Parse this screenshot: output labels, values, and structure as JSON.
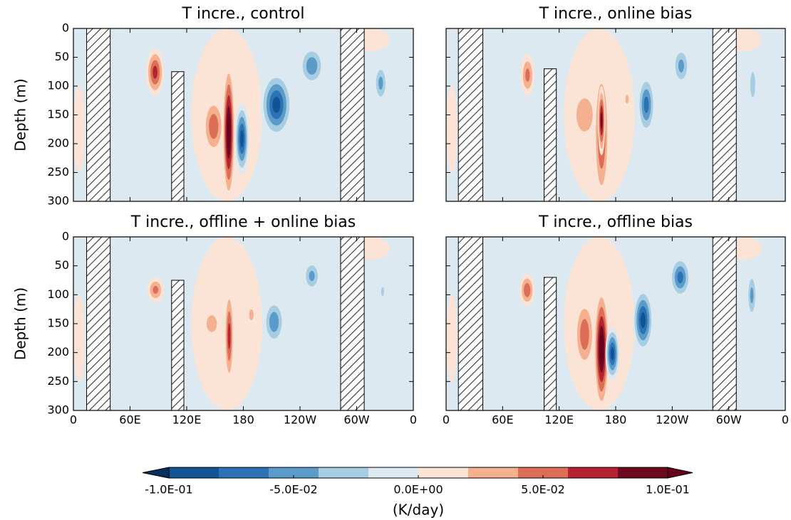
{
  "chart_data": [
    {
      "type": "contour",
      "title": "T incre.,  control",
      "ylabel": "Depth (m)",
      "xlim": [
        0,
        360
      ],
      "xticks": [
        0,
        60,
        120,
        180,
        240,
        300,
        360
      ],
      "ylim": [
        300,
        0
      ],
      "yticks": [
        0,
        50,
        100,
        150,
        200,
        250,
        300
      ],
      "background": -0.01,
      "masks": [
        {
          "lon": [
            14,
            39
          ],
          "depth": [
            0,
            300
          ]
        },
        {
          "lon": [
            104,
            117
          ],
          "depth": [
            75,
            300
          ]
        },
        {
          "lon": [
            283,
            308
          ],
          "depth": [
            0,
            300
          ]
        }
      ],
      "features": [
        {
          "lon": [
            125,
            200
          ],
          "depth": [
            0,
            300
          ],
          "value": 0.01
        },
        {
          "lon": [
            0,
            12
          ],
          "depth": [
            100,
            250
          ],
          "value": 0.01
        },
        {
          "lon": [
            295,
            335
          ],
          "depth": [
            0,
            40
          ],
          "value": 0.01
        },
        {
          "lon": [
            77,
            96
          ],
          "depth": [
            35,
            117
          ],
          "value": 0.07
        },
        {
          "lon": [
            137,
            160
          ],
          "depth": [
            120,
            220
          ],
          "value": 0.06
        },
        {
          "lon": [
            158,
            171
          ],
          "depth": [
            60,
            300
          ],
          "value": 0.11
        },
        {
          "lon": [
            171,
            186
          ],
          "depth": [
            130,
            253
          ],
          "value": -0.09
        },
        {
          "lon": [
            198,
            232
          ],
          "depth": [
            75,
            190
          ],
          "value": -0.09
        },
        {
          "lon": [
            239,
            266
          ],
          "depth": [
            30,
            100
          ],
          "value": -0.06
        },
        {
          "lon": [
            318,
            333
          ],
          "depth": [
            60,
            130
          ],
          "value": -0.05
        }
      ]
    },
    {
      "type": "contour",
      "title": "T incre.,  online bias",
      "xlim": [
        0,
        360
      ],
      "xticks": [
        0,
        60,
        120,
        180,
        240,
        300,
        360
      ],
      "ylim": [
        300,
        0
      ],
      "yticks": [
        0,
        50,
        100,
        150,
        200,
        250,
        300
      ],
      "background": -0.01,
      "masks": [
        {
          "lon": [
            13,
            39
          ],
          "depth": [
            0,
            300
          ]
        },
        {
          "lon": [
            104,
            117
          ],
          "depth": [
            70,
            300
          ]
        },
        {
          "lon": [
            283,
            308
          ],
          "depth": [
            0,
            300
          ]
        }
      ],
      "features": [
        {
          "lon": [
            125,
            200
          ],
          "depth": [
            0,
            300
          ],
          "value": 0.01
        },
        {
          "lon": [
            0,
            12
          ],
          "depth": [
            100,
            250
          ],
          "value": 0.01
        },
        {
          "lon": [
            295,
            335
          ],
          "depth": [
            0,
            40
          ],
          "value": 0.01
        },
        {
          "lon": [
            79,
            94
          ],
          "depth": [
            45,
            117
          ],
          "value": 0.05
        },
        {
          "lon": [
            132,
            162
          ],
          "depth": [
            100,
            200
          ],
          "value": 0.04
        },
        {
          "lon": [
            157,
            173
          ],
          "depth": [
            68,
            300
          ],
          "value": 0.07
        },
        {
          "lon": [
            161,
            169
          ],
          "depth": [
            100,
            220
          ],
          "value": 0.09
        },
        {
          "lon": [
            188,
            196
          ],
          "depth": [
            105,
            140
          ],
          "value": 0.03
        },
        {
          "lon": [
            203,
            222
          ],
          "depth": [
            80,
            185
          ],
          "value": -0.07
        },
        {
          "lon": [
            240,
            259
          ],
          "depth": [
            30,
            100
          ],
          "value": -0.05
        },
        {
          "lon": [
            321,
            330
          ],
          "depth": [
            60,
            135
          ],
          "value": -0.04
        }
      ]
    },
    {
      "type": "contour",
      "title": "T incre.,  offline + online bias",
      "ylabel": "Depth (m)",
      "xlim": [
        0,
        360
      ],
      "xticks": [
        0,
        {
          "value": 60,
          "label": "60E"
        },
        {
          "value": 120,
          "label": "120E"
        },
        180,
        {
          "value": 240,
          "label": "120W"
        },
        {
          "value": 300,
          "label": "60W"
        },
        {
          "value": 360,
          "label": "0"
        }
      ],
      "ylim": [
        300,
        0
      ],
      "yticks": [
        0,
        50,
        100,
        150,
        200,
        250,
        300
      ],
      "background": -0.01,
      "masks": [
        {
          "lon": [
            14,
            39
          ],
          "depth": [
            0,
            300
          ]
        },
        {
          "lon": [
            104,
            117
          ],
          "depth": [
            75,
            300
          ]
        },
        {
          "lon": [
            283,
            308
          ],
          "depth": [
            0,
            300
          ]
        }
      ],
      "features": [
        {
          "lon": [
            125,
            200
          ],
          "depth": [
            0,
            300
          ],
          "value": 0.01
        },
        {
          "lon": [
            0,
            12
          ],
          "depth": [
            100,
            250
          ],
          "value": 0.01
        },
        {
          "lon": [
            295,
            335
          ],
          "depth": [
            0,
            40
          ],
          "value": 0.01
        },
        {
          "lon": [
            78,
            96
          ],
          "depth": [
            70,
            113
          ],
          "value": 0.05
        },
        {
          "lon": [
            137,
            156
          ],
          "depth": [
            125,
            175
          ],
          "value": 0.04
        },
        {
          "lon": [
            160,
            170
          ],
          "depth": [
            88,
            255
          ],
          "value": 0.07
        },
        {
          "lon": [
            183,
            194
          ],
          "depth": [
            113,
            156
          ],
          "value": 0.03
        },
        {
          "lon": [
            201,
            224
          ],
          "depth": [
            107,
            187
          ],
          "value": -0.06
        },
        {
          "lon": [
            243,
            262
          ],
          "depth": [
            40,
            95
          ],
          "value": -0.05
        },
        {
          "lon": [
            324,
            331
          ],
          "depth": [
            76,
            113
          ],
          "value": -0.03
        }
      ]
    },
    {
      "type": "contour",
      "title": "T incre.,  offline bias",
      "xlim": [
        0,
        360
      ],
      "xticks": [
        0,
        {
          "value": 60,
          "label": "60E"
        },
        {
          "value": 120,
          "label": "120E"
        },
        180,
        {
          "value": 240,
          "label": "120W"
        },
        {
          "value": 300,
          "label": "60W"
        },
        {
          "value": 360,
          "label": "0"
        }
      ],
      "ylim": [
        300,
        0
      ],
      "yticks": [
        0,
        50,
        100,
        150,
        200,
        250,
        300
      ],
      "background": -0.01,
      "masks": [
        {
          "lon": [
            13,
            39
          ],
          "depth": [
            0,
            300
          ]
        },
        {
          "lon": [
            104,
            117
          ],
          "depth": [
            70,
            300
          ]
        },
        {
          "lon": [
            283,
            308
          ],
          "depth": [
            0,
            300
          ]
        }
      ],
      "features": [
        {
          "lon": [
            125,
            200
          ],
          "depth": [
            0,
            300
          ],
          "value": 0.01
        },
        {
          "lon": [
            0,
            12
          ],
          "depth": [
            100,
            250
          ],
          "value": 0.01
        },
        {
          "lon": [
            295,
            335
          ],
          "depth": [
            0,
            40
          ],
          "value": 0.01
        },
        {
          "lon": [
            78,
            94
          ],
          "depth": [
            64,
            120
          ],
          "value": 0.06
        },
        {
          "lon": [
            136,
            158
          ],
          "depth": [
            107,
            230
          ],
          "value": 0.06
        },
        {
          "lon": [
            157,
            173
          ],
          "depth": [
            88,
            300
          ],
          "value": 0.11
        },
        {
          "lon": [
            169,
            184
          ],
          "depth": [
            156,
            248
          ],
          "value": -0.09
        },
        {
          "lon": [
            198,
            220
          ],
          "depth": [
            88,
            200
          ],
          "value": -0.09
        },
        {
          "lon": [
            237,
            260
          ],
          "depth": [
            33,
            107
          ],
          "value": -0.07
        },
        {
          "lon": [
            319,
            330
          ],
          "depth": [
            58,
            144
          ],
          "value": -0.05
        }
      ]
    },
    {
      "type": "colorbar",
      "label": "(K/day)",
      "levels": [
        -0.1,
        -0.08,
        -0.06,
        -0.04,
        -0.02,
        0,
        0.02,
        0.04,
        0.06,
        0.08,
        0.1
      ],
      "colors": [
        "#125493",
        "#2b73b4",
        "#5a9bc9",
        "#a7cde3",
        "#dde9f1",
        "#fbe3d6",
        "#f4b08f",
        "#dc6e57",
        "#b52330",
        "#6e0a20"
      ],
      "under_color": "#053061",
      "over_color": "#67001f",
      "xlim": [
        -0.1,
        0.1
      ],
      "xticks": [
        {
          "value": -0.1,
          "label": "-1.0E-01"
        },
        {
          "value": -0.05,
          "label": "-5.0E-02"
        },
        {
          "value": 0,
          "label": "0.0E+00"
        },
        {
          "value": 0.05,
          "label": "5.0E-02"
        },
        {
          "value": 0.1,
          "label": "1.0E-01"
        }
      ]
    }
  ]
}
